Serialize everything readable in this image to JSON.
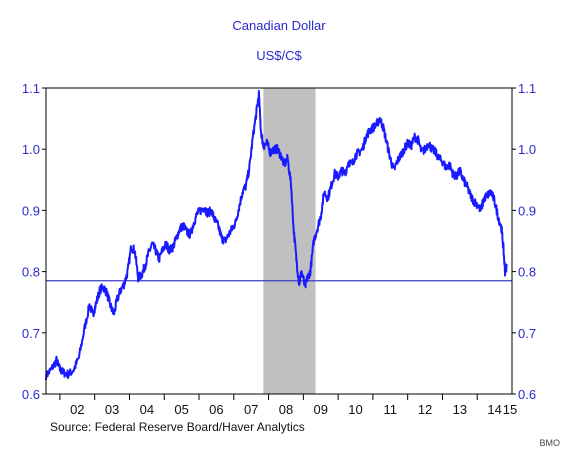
{
  "chart_data": {
    "type": "line",
    "title": "Canadian Dollar",
    "subtitle": "US$/C$",
    "source": "Source:  Federal Reserve Board/Haver Analytics",
    "credit": "BMO",
    "x_tick_labels": [
      "02",
      "03",
      "04",
      "05",
      "06",
      "07",
      "08",
      "09",
      "10",
      "11",
      "12",
      "13",
      "14",
      "15"
    ],
    "x_tick_years": [
      2002,
      2003,
      2004,
      2005,
      2006,
      2007,
      2008,
      2009,
      2010,
      2011,
      2012,
      2013,
      2014,
      2015
    ],
    "xlim": [
      2001.6,
      2015.0
    ],
    "ylim": [
      0.6,
      1.1
    ],
    "y_ticks": [
      0.6,
      0.7,
      0.8,
      0.9,
      1.0,
      1.1
    ],
    "y_tick_labels": [
      "0.6",
      "0.7",
      "0.8",
      "0.9",
      "1.0",
      "1.1"
    ],
    "grid": false,
    "reference_line": {
      "y": 0.785
    },
    "shaded_region": {
      "x_start": 2007.85,
      "x_end": 2009.35
    },
    "colors": {
      "line": "#1a1aff",
      "reference_line": "#3b3bc8",
      "shade": "#c0c0c0",
      "axis_text": "#2a2acf"
    },
    "series": [
      {
        "x": [
          2001.6,
          2001.75,
          2001.9,
          2002.0,
          2002.1,
          2002.25,
          2002.4,
          2002.55,
          2002.7,
          2002.85,
          2002.95,
          2003.05,
          2003.15,
          2003.25,
          2003.35,
          2003.45,
          2003.55,
          2003.65,
          2003.75,
          2003.85,
          2003.95,
          2004.05,
          2004.15,
          2004.25,
          2004.35,
          2004.45,
          2004.55,
          2004.65,
          2004.75,
          2004.85,
          2004.95,
          2005.05,
          2005.15,
          2005.25,
          2005.35,
          2005.45,
          2005.55,
          2005.65,
          2005.75,
          2005.85,
          2005.95,
          2006.05,
          2006.15,
          2006.25,
          2006.35,
          2006.45,
          2006.55,
          2006.65,
          2006.75,
          2006.85,
          2006.95,
          2007.05,
          2007.15,
          2007.25,
          2007.35,
          2007.45,
          2007.55,
          2007.65,
          2007.72,
          2007.78,
          2007.85,
          2007.95,
          2008.05,
          2008.15,
          2008.25,
          2008.35,
          2008.45,
          2008.55,
          2008.65,
          2008.72,
          2008.8,
          2008.88,
          2008.95,
          2009.05,
          2009.12,
          2009.2,
          2009.3,
          2009.4,
          2009.5,
          2009.6,
          2009.7,
          2009.8,
          2009.9,
          2010.0,
          2010.1,
          2010.2,
          2010.3,
          2010.4,
          2010.5,
          2010.6,
          2010.7,
          2010.8,
          2010.9,
          2011.0,
          2011.1,
          2011.2,
          2011.3,
          2011.4,
          2011.5,
          2011.6,
          2011.7,
          2011.8,
          2011.9,
          2012.0,
          2012.1,
          2012.2,
          2012.3,
          2012.4,
          2012.5,
          2012.6,
          2012.7,
          2012.8,
          2012.9,
          2013.0,
          2013.1,
          2013.2,
          2013.3,
          2013.4,
          2013.5,
          2013.6,
          2013.7,
          2013.8,
          2013.9,
          2014.0,
          2014.1,
          2014.2,
          2014.3,
          2014.4,
          2014.5,
          2014.6,
          2014.7,
          2014.75,
          2014.8,
          2014.85
        ],
        "y": [
          0.63,
          0.64,
          0.655,
          0.64,
          0.635,
          0.632,
          0.64,
          0.66,
          0.705,
          0.745,
          0.73,
          0.75,
          0.77,
          0.775,
          0.765,
          0.745,
          0.73,
          0.755,
          0.77,
          0.78,
          0.8,
          0.84,
          0.835,
          0.79,
          0.795,
          0.81,
          0.83,
          0.845,
          0.835,
          0.82,
          0.835,
          0.845,
          0.835,
          0.84,
          0.855,
          0.87,
          0.875,
          0.865,
          0.86,
          0.88,
          0.895,
          0.9,
          0.905,
          0.895,
          0.9,
          0.885,
          0.875,
          0.855,
          0.85,
          0.86,
          0.87,
          0.88,
          0.905,
          0.93,
          0.94,
          0.97,
          1.02,
          1.06,
          1.09,
          1.03,
          1.005,
          1.01,
          0.995,
          1.0,
          1.0,
          0.99,
          0.975,
          0.985,
          0.94,
          0.87,
          0.82,
          0.78,
          0.8,
          0.775,
          0.79,
          0.8,
          0.85,
          0.87,
          0.89,
          0.93,
          0.92,
          0.94,
          0.96,
          0.955,
          0.965,
          0.96,
          0.98,
          0.975,
          0.99,
          0.995,
          1.0,
          1.02,
          1.03,
          1.035,
          1.04,
          1.05,
          1.035,
          1.01,
          0.985,
          0.965,
          0.98,
          0.99,
          1.0,
          1.01,
          1.005,
          1.02,
          1.015,
          0.995,
          1.0,
          1.01,
          1.0,
          0.995,
          0.985,
          0.98,
          0.97,
          0.975,
          0.96,
          0.955,
          0.965,
          0.95,
          0.94,
          0.925,
          0.915,
          0.91,
          0.9,
          0.92,
          0.925,
          0.93,
          0.915,
          0.89,
          0.87,
          0.84,
          0.8,
          0.81
        ]
      }
    ]
  }
}
